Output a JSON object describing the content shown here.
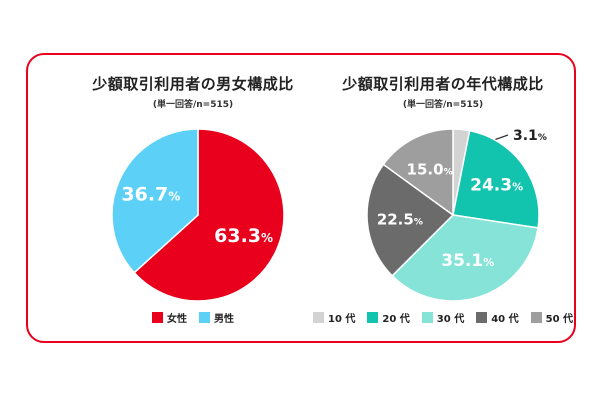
{
  "chart_data": [
    {
      "type": "pie",
      "title": "少額取引利用者の男女構成比",
      "subtitle": "(単一回答/n=515)",
      "categories": [
        "女性",
        "男性"
      ],
      "values": [
        63.3,
        36.7
      ],
      "colors": [
        "#e8001c",
        "#5cd0f7"
      ],
      "labels": [
        "63.3",
        "36.7"
      ],
      "unit": "%"
    },
    {
      "type": "pie",
      "title": "少額取引利用者の年代構成比",
      "subtitle": "(単一回答/n=515)",
      "categories": [
        "10 代",
        "20 代",
        "30 代",
        "40 代",
        "50 代"
      ],
      "values": [
        3.1,
        24.3,
        35.1,
        22.5,
        15.0
      ],
      "colors": [
        "#d3d3d3",
        "#12c3ad",
        "#86e3d8",
        "#6b6b6b",
        "#9e9e9e"
      ],
      "labels": [
        "3.1",
        "24.3",
        "35.1",
        "22.5",
        "15.0"
      ],
      "unit": "%"
    }
  ]
}
